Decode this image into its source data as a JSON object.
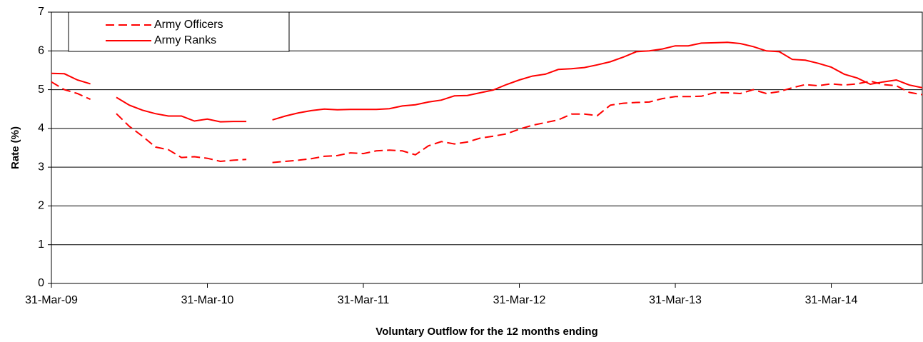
{
  "chart_data": {
    "type": "line",
    "x_label": "Voluntary Outflow for the 12 months ending",
    "y_label": "Rate (%)",
    "categories": [
      "31-Mar-09",
      null,
      null,
      null,
      null,
      null,
      null,
      null,
      null,
      null,
      null,
      null,
      "31-Mar-10",
      null,
      null,
      null,
      null,
      null,
      null,
      null,
      null,
      null,
      null,
      null,
      "31-Mar-11",
      null,
      null,
      null,
      null,
      null,
      null,
      null,
      null,
      null,
      null,
      null,
      "31-Mar-12",
      null,
      null,
      null,
      null,
      null,
      null,
      null,
      null,
      null,
      null,
      null,
      "31-Mar-13",
      null,
      null,
      null,
      null,
      null,
      null,
      null,
      null,
      null,
      null,
      null,
      "31-Mar-14",
      null,
      null,
      null,
      null,
      null,
      null,
      null
    ],
    "series": [
      {
        "name": "Army Officers",
        "color": "#ff0000",
        "dash": true,
        "values": [
          5.2,
          5.0,
          4.9,
          4.75,
          null,
          4.38,
          4.05,
          3.8,
          3.52,
          3.45,
          3.25,
          3.27,
          3.23,
          3.15,
          3.18,
          3.2,
          null,
          3.12,
          3.15,
          3.18,
          3.22,
          3.28,
          3.3,
          3.37,
          3.35,
          3.42,
          3.44,
          3.42,
          3.32,
          3.55,
          3.66,
          3.6,
          3.65,
          3.75,
          3.8,
          3.86,
          3.98,
          4.08,
          4.15,
          4.22,
          4.37,
          4.37,
          4.33,
          4.6,
          4.65,
          4.67,
          4.68,
          4.77,
          4.82,
          4.82,
          4.83,
          4.92,
          4.92,
          4.9,
          5.0,
          4.9,
          4.95,
          5.05,
          5.13,
          5.1,
          5.15,
          5.12,
          5.15,
          5.22,
          5.13,
          5.1,
          4.93,
          4.87
        ]
      },
      {
        "name": "Army Ranks",
        "color": "#ff0000",
        "dash": false,
        "values": [
          5.42,
          5.41,
          5.25,
          5.15,
          null,
          4.8,
          4.6,
          4.47,
          4.38,
          4.32,
          4.32,
          4.19,
          4.24,
          4.17,
          4.18,
          4.18,
          null,
          4.22,
          4.32,
          4.4,
          4.46,
          4.5,
          4.48,
          4.49,
          4.49,
          4.49,
          4.51,
          4.58,
          4.61,
          4.68,
          4.73,
          4.84,
          4.85,
          4.92,
          4.99,
          5.13,
          5.25,
          5.35,
          5.4,
          5.52,
          5.54,
          5.57,
          5.64,
          5.72,
          5.84,
          5.98,
          6.0,
          6.05,
          6.13,
          6.13,
          6.2,
          6.21,
          6.22,
          6.19,
          6.11,
          6.0,
          5.98,
          5.78,
          5.76,
          5.68,
          5.58,
          5.4,
          5.3,
          5.14,
          5.2,
          5.25,
          5.12,
          5.05
        ]
      }
    ],
    "ylim": [
      0,
      7
    ],
    "yticks": [
      0,
      1,
      2,
      3,
      4,
      5,
      6,
      7
    ],
    "grid": true,
    "legend": "top-left"
  }
}
